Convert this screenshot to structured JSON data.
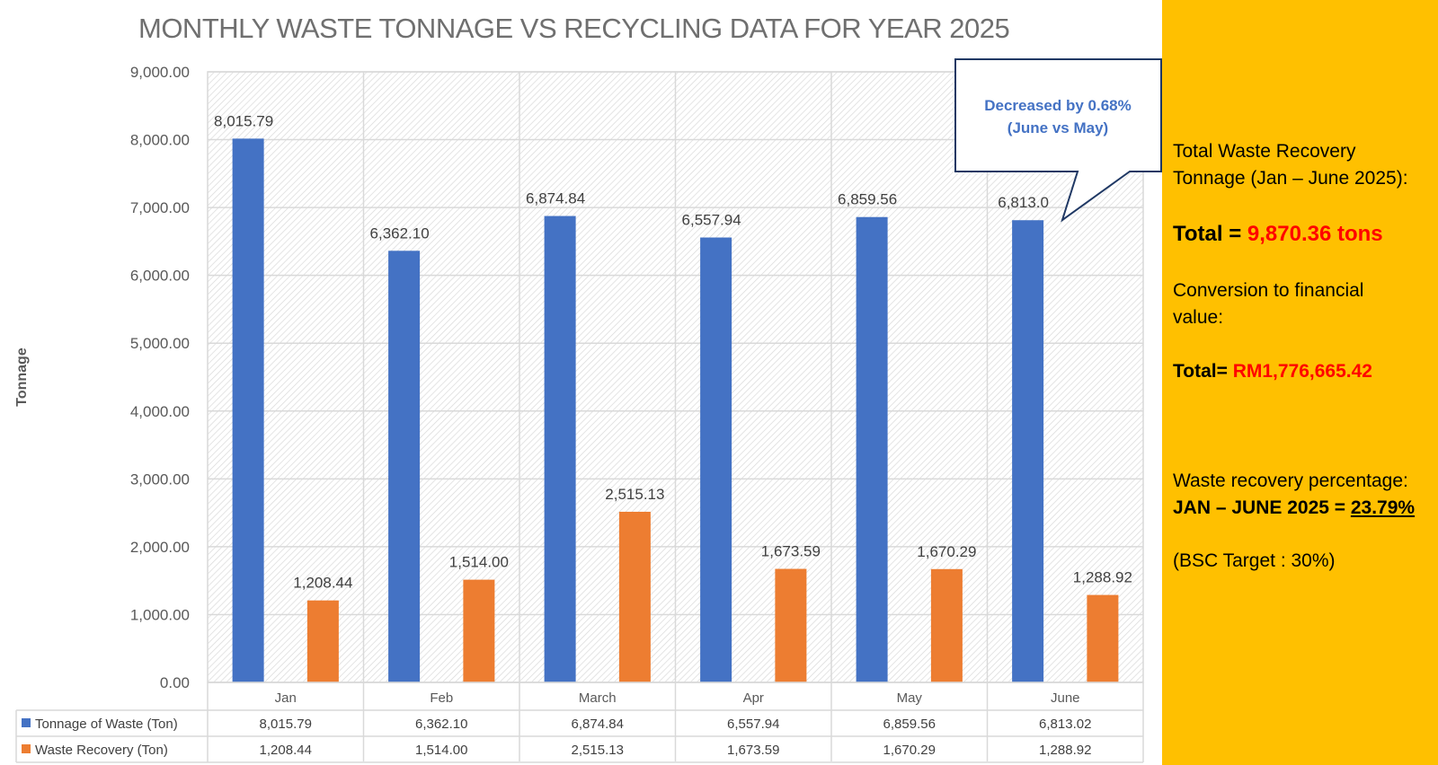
{
  "chart_data": {
    "type": "bar",
    "title": "MONTHLY WASTE TONNAGE VS RECYCLING DATA FOR YEAR 2025",
    "xlabel": "",
    "ylabel": "Tonnage",
    "ylim": [
      0,
      9000
    ],
    "yticks": [
      0,
      1000,
      2000,
      3000,
      4000,
      5000,
      6000,
      7000,
      8000,
      9000
    ],
    "ytick_labels": [
      "0.00",
      "1,000.00",
      "2,000.00",
      "3,000.00",
      "4,000.00",
      "5,000.00",
      "6,000.00",
      "7,000.00",
      "8,000.00",
      "9,000.00"
    ],
    "grid": true,
    "categories": [
      "Jan",
      "Feb",
      "March",
      "Apr",
      "May",
      "June"
    ],
    "series": [
      {
        "name": "Tonnage of Waste (Ton)",
        "color": "#4472c4",
        "values": [
          8015.79,
          6362.1,
          6874.84,
          6557.94,
          6859.56,
          6813.02
        ],
        "labels": [
          "8,015.79",
          "6,362.10",
          "6,874.84",
          "6,557.94",
          "6,859.56",
          "6,813.0"
        ],
        "table_labels": [
          "8,015.79",
          "6,362.10",
          "6,874.84",
          "6,557.94",
          "6,859.56",
          "6,813.02"
        ]
      },
      {
        "name": "Waste Recovery (Ton)",
        "color": "#ed7d31",
        "values": [
          1208.44,
          1514.0,
          2515.13,
          1673.59,
          1670.29,
          1288.92
        ],
        "labels": [
          "1,208.44",
          "1,514.00",
          "2,515.13",
          "1,673.59",
          "1,670.29",
          "1,288.92"
        ],
        "table_labels": [
          "1,208.44",
          "1,514.00",
          "2,515.13",
          "1,673.59",
          "1,670.29",
          "1,288.92"
        ]
      }
    ],
    "legend": "data-table-below",
    "annotation": {
      "line1": "Decreased  by 0.68%",
      "line2": "(June vs May)",
      "target_category": "June",
      "target_series": "Tonnage of Waste (Ton)"
    }
  },
  "info_panel": {
    "background": "#ffc000",
    "recovery_heading_line1": "Total Waste Recovery",
    "recovery_heading_line2": "Tonnage (Jan – June 2025):",
    "total_label": "Total = ",
    "total_value": "9,870.36 tons",
    "conversion_line1": "Conversion to financial",
    "conversion_line2": "value:",
    "financial_label": "Total= ",
    "financial_value": "RM1,776,665.42",
    "percentage_heading": "Waste recovery percentage:",
    "percentage_label": "JAN – JUNE 2025 = ",
    "percentage_value": "23.79%",
    "target_text": "(BSC Target : 30%)"
  }
}
